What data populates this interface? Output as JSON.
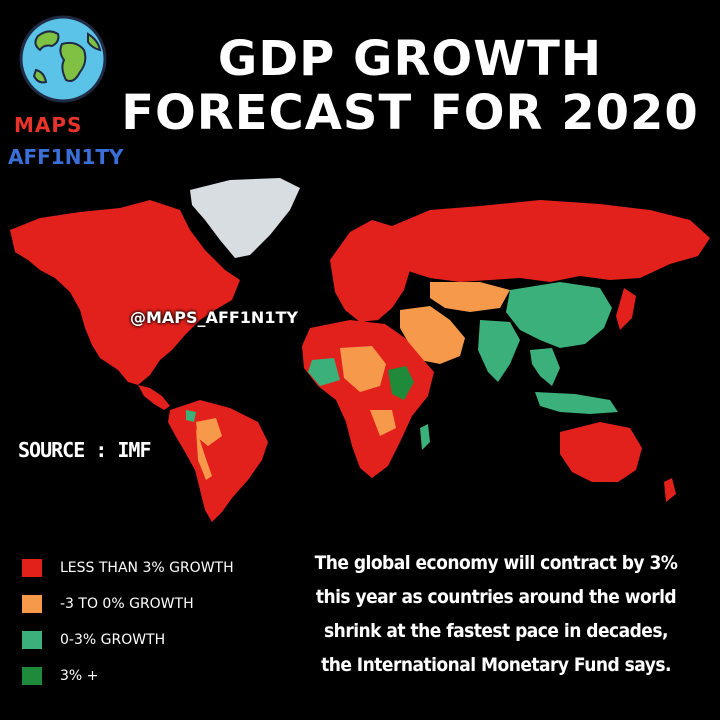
{
  "brand": {
    "line1": "MAPS",
    "line2": "AFF1N1TY",
    "icon": "globe-icon",
    "colors": {
      "maps": "#e8332a",
      "affinity": "#3a6fd8",
      "ocean": "#5cc3e8",
      "land": "#7fc243"
    }
  },
  "title": {
    "line1": "GDP GROWTH",
    "line2": "FORECAST FOR 2020"
  },
  "map": {
    "handle": "@MAPS_AFF1N1TY",
    "source": "SOURCE : IMF",
    "colors": {
      "less_than_3": "#e3211c",
      "neg3_to_0": "#f7994a",
      "zero_to_3": "#3bb07a",
      "three_plus": "#1e8a3a",
      "no_data": "#d7dde0"
    }
  },
  "legend": [
    {
      "label": "LESS THAN 3% GROWTH",
      "color": "#e3211c"
    },
    {
      "label": "-3 TO 0% GROWTH",
      "color": "#f7994a"
    },
    {
      "label": "0-3% GROWTH",
      "color": "#3bb07a"
    },
    {
      "label": "3% +",
      "color": "#1e8a3a"
    }
  ],
  "caption": "The global economy will contract by 3% this year as countries around the world shrink at the fastest pace in decades, the International Monetary Fund says."
}
